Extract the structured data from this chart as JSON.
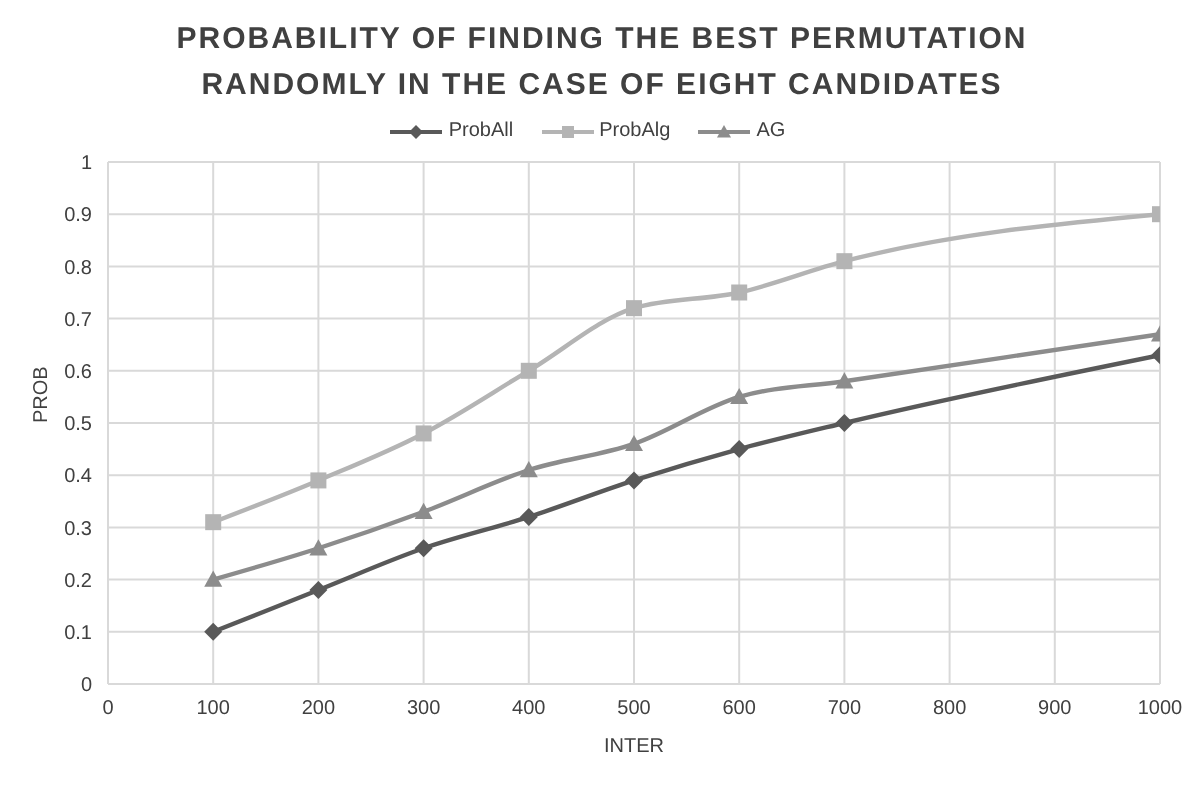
{
  "chart_data": {
    "type": "line",
    "title": "PROBABILITY OF FINDING THE BEST PERMUTATION RANDOMLY IN THE CASE OF EIGHT CANDIDATES",
    "xlabel": "INTER",
    "ylabel": "PROB",
    "x": [
      100,
      200,
      300,
      400,
      500,
      600,
      700,
      1000
    ],
    "series": [
      {
        "name": "ProbAll",
        "color": "#595959",
        "marker": "diamond",
        "values": [
          0.1,
          0.18,
          0.26,
          0.32,
          0.39,
          0.45,
          0.5,
          0.63
        ]
      },
      {
        "name": "ProbAlg",
        "color": "#b4b4b4",
        "marker": "square",
        "values": [
          0.31,
          0.39,
          0.48,
          0.6,
          0.72,
          0.75,
          0.81,
          0.9
        ]
      },
      {
        "name": "AG",
        "color": "#8c8c8c",
        "marker": "triangle",
        "values": [
          0.2,
          0.26,
          0.33,
          0.41,
          0.46,
          0.55,
          0.58,
          0.67
        ]
      }
    ],
    "xlim": [
      0,
      1000
    ],
    "xticks": [
      0,
      100,
      200,
      300,
      400,
      500,
      600,
      700,
      800,
      900,
      1000
    ],
    "ylim": [
      0,
      1
    ],
    "yticks": [
      0,
      0.1,
      0.2,
      0.3,
      0.4,
      0.5,
      0.6,
      0.7,
      0.8,
      0.9,
      1
    ],
    "grid": true,
    "legend": "top",
    "line_style": "solid"
  }
}
